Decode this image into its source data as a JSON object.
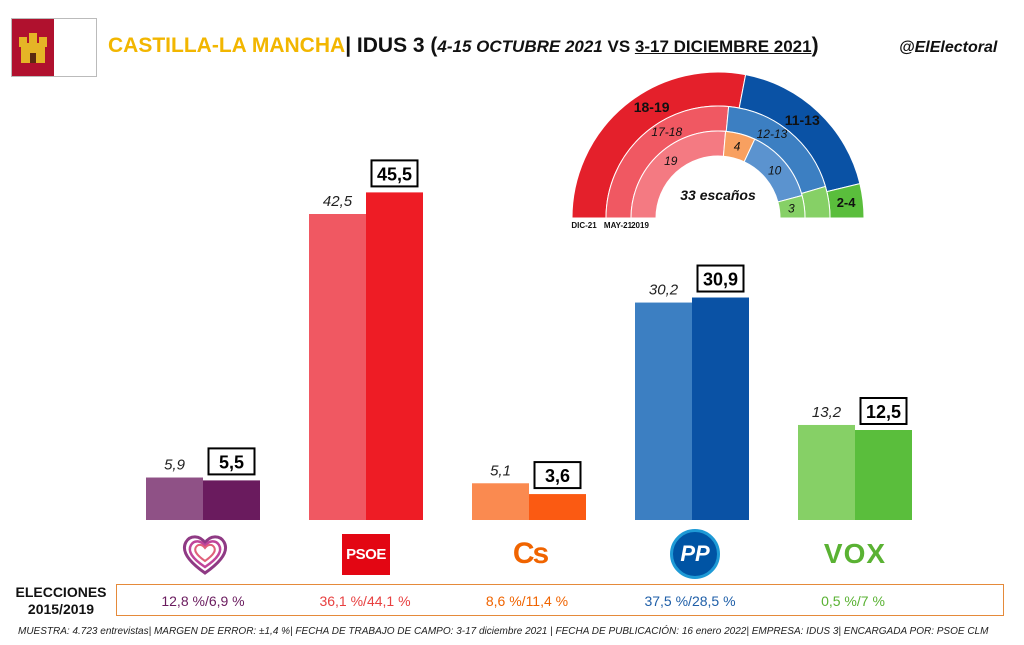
{
  "header": {
    "region": "CASTILLA-LA MANCHA",
    "separator": "| IDUS 3 (",
    "period1": "4-15 OCTUBRE 2021",
    "vs": " VS ",
    "period2": "3-17 DICIEMBRE 2021",
    "close": ")",
    "handle": "@ElElectoral"
  },
  "chart_data": {
    "type": "bar",
    "categories": [
      "Podemos",
      "PSOE",
      "Cs",
      "PP",
      "VOX"
    ],
    "series": [
      {
        "values": [
          5.9,
          42.5,
          5.1,
          30.2,
          13.2
        ]
      },
      {
        "values": [
          5.5,
          45.5,
          3.6,
          30.9,
          12.5
        ]
      }
    ],
    "labels_prev": [
      "5,9",
      "42,5",
      "5,1",
      "30,2",
      "13,2"
    ],
    "labels_cur": [
      "5,5",
      "45,5",
      "3,6",
      "30,9",
      "12,5"
    ],
    "colors_prev": [
      "#8f5186",
      "#f05862",
      "#fa8a50",
      "#3c7fc2",
      "#86d066"
    ],
    "colors_cur": [
      "#6a1b5e",
      "#ee1c25",
      "#fb5a12",
      "#0a52a5",
      "#5abe3c"
    ]
  },
  "parties": [
    {
      "name": "Podemos",
      "logo": "heart-icon",
      "color": "#8f3a84"
    },
    {
      "name": "PSOE",
      "logo_text": "PSOE",
      "color": "#e30613"
    },
    {
      "name": "Cs",
      "logo_text": "Cs",
      "color": "#f06400"
    },
    {
      "name": "PP",
      "logo_text": "PP",
      "color": "#0054a4"
    },
    {
      "name": "VOX",
      "logo_text": "VOX",
      "color": "#5ab233"
    }
  ],
  "seats": {
    "center_label": "33 escaños",
    "outer_labels": [
      "18-19",
      "11-13",
      "2-4"
    ],
    "middle_labels": [
      "17-18",
      "12-13"
    ],
    "inner_labels": [
      "19",
      "4",
      "10",
      "3"
    ],
    "axis_labels": [
      "DIC-21",
      "MAY-21",
      "2019"
    ],
    "outer": [
      18.5,
      12,
      2.5
    ],
    "middle": [
      17.5,
      12.5,
      3
    ],
    "inner": [
      19,
      4,
      10,
      3
    ],
    "outer_colors": [
      "#e4202b",
      "#0a52a5",
      "#5abe3c"
    ],
    "middle_colors": [
      "#f05862",
      "#3c7fc2",
      "#86d066"
    ],
    "inner_colors": [
      "#f47a82",
      "#f8a060",
      "#5b93cf",
      "#86d066"
    ]
  },
  "elections": {
    "label_line1": "ELECCIONES",
    "label_line2": "2015/2019",
    "values": [
      "12,8 %/6,9 %",
      "36,1 %/44,1 %",
      "8,6 %/11,4 %",
      "37,5 %/28,5 %",
      "0,5 %/7 %"
    ],
    "colors": [
      "#6a1b5e",
      "#e84040",
      "#f06400",
      "#1f5fa8",
      "#5ab233"
    ]
  },
  "footer": "MUESTRA: 4.723 entrevistas| MARGEN DE ERROR: ±1,4 %| FECHA DE TRABAJO DE CAMPO: 3-17 diciembre 2021 | FECHA DE PUBLICACIÓN: 16 enero 2022| EMPRESA: IDUS 3| ENCARGADA POR: PSOE CLM"
}
